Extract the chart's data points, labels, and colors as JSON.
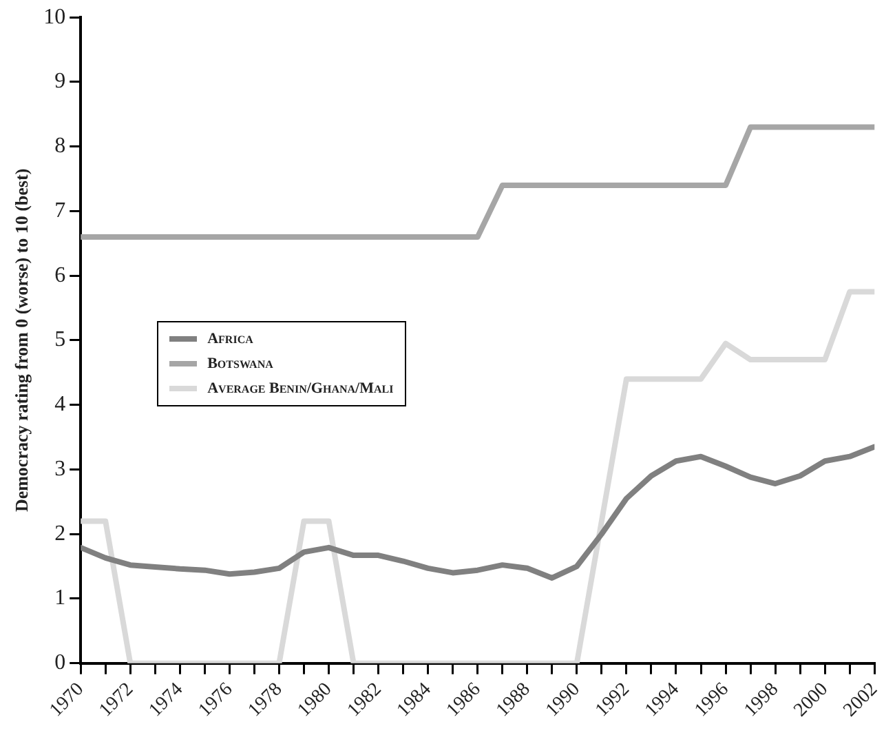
{
  "chart_data": {
    "type": "line",
    "ylabel": "Democracy rating from 0 (worse) to 10 (best)",
    "x": [
      1970,
      1971,
      1972,
      1973,
      1974,
      1975,
      1976,
      1977,
      1978,
      1979,
      1980,
      1981,
      1982,
      1983,
      1984,
      1985,
      1986,
      1987,
      1988,
      1989,
      1990,
      1991,
      1992,
      1993,
      1994,
      1995,
      1996,
      1997,
      1998,
      1999,
      2000,
      2001,
      2002
    ],
    "series": [
      {
        "name": "Africa",
        "color": "#808080",
        "values": [
          1.79,
          1.63,
          1.52,
          1.49,
          1.46,
          1.44,
          1.38,
          1.41,
          1.47,
          1.72,
          1.79,
          1.67,
          1.67,
          1.58,
          1.47,
          1.4,
          1.44,
          1.52,
          1.47,
          1.32,
          1.5,
          2.0,
          2.55,
          2.9,
          3.13,
          3.2,
          3.05,
          2.88,
          2.78,
          2.9,
          3.13,
          3.2,
          3.35
        ]
      },
      {
        "name": "Botswana",
        "color": "#a6a6a6",
        "values": [
          6.6,
          6.6,
          6.6,
          6.6,
          6.6,
          6.6,
          6.6,
          6.6,
          6.6,
          6.6,
          6.6,
          6.6,
          6.6,
          6.6,
          6.6,
          6.6,
          6.6,
          7.4,
          7.4,
          7.4,
          7.4,
          7.4,
          7.4,
          7.4,
          7.4,
          7.4,
          7.4,
          8.3,
          8.3,
          8.3,
          8.3,
          8.3,
          8.3
        ]
      },
      {
        "name": "Average Benin/Ghana/Mali",
        "color": "#d9d9d9",
        "values": [
          2.2,
          2.2,
          0,
          0,
          0,
          0,
          0,
          0,
          0,
          2.2,
          2.2,
          0,
          0,
          0,
          0,
          0,
          0,
          0,
          0,
          0,
          0,
          2.2,
          4.4,
          4.4,
          4.4,
          4.4,
          4.95,
          4.7,
          4.7,
          4.7,
          4.7,
          5.75,
          5.75
        ]
      }
    ],
    "xlim": [
      1970,
      2002
    ],
    "xticks": [
      1970,
      {
        "value": 1971,
        "label": null
      },
      1972,
      {
        "value": 1973,
        "label": null
      },
      1974,
      {
        "value": 1975,
        "label": null
      },
      1976,
      {
        "value": 1977,
        "label": null
      },
      1978,
      {
        "value": 1979,
        "label": null
      },
      1980,
      {
        "value": 1981,
        "label": null
      },
      1982,
      {
        "value": 1983,
        "label": null
      },
      1984,
      {
        "value": 1985,
        "label": null
      },
      1986,
      {
        "value": 1987,
        "label": null
      },
      1988,
      {
        "value": 1989,
        "label": null
      },
      1990,
      {
        "value": 1991,
        "label": null
      },
      1992,
      {
        "value": 1993,
        "label": null
      },
      1994,
      {
        "value": 1995,
        "label": null
      },
      1996,
      {
        "value": 1997,
        "label": null
      },
      1998,
      {
        "value": 1999,
        "label": null
      },
      2000,
      {
        "value": 2001,
        "label": null
      },
      2002
    ],
    "ylim": [
      0,
      10
    ],
    "yticks": [
      0,
      1,
      2,
      3,
      4,
      5,
      6,
      7,
      8,
      9,
      10
    ],
    "grid": false,
    "legend": "left",
    "marker": "none",
    "line_style": "solid"
  }
}
